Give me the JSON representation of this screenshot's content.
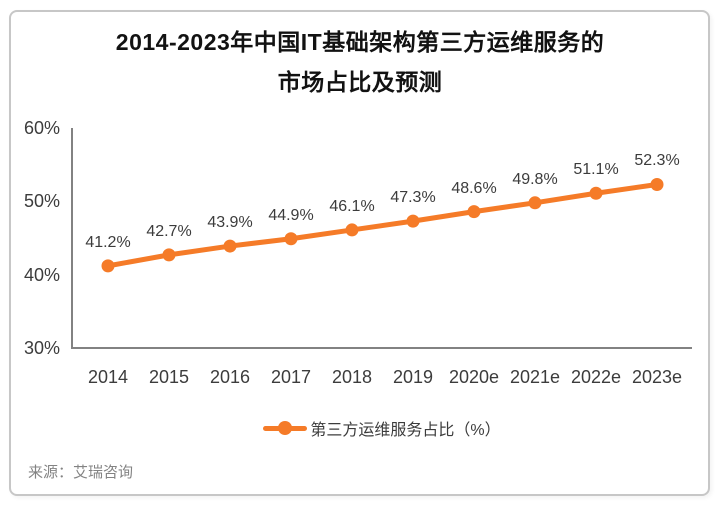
{
  "title": {
    "line1": "2014-2023年中国IT基础架构第三方运维服务的",
    "line2": "市场占比及预测"
  },
  "chart_data": {
    "type": "line",
    "title": "2014-2023年中国IT基础架构第三方运维服务的市场占比及预测",
    "categories": [
      "2014",
      "2015",
      "2016",
      "2017",
      "2018",
      "2019",
      "2020e",
      "2021e",
      "2022e",
      "2023e"
    ],
    "series": [
      {
        "name": "第三方运维服务占比（%）",
        "values": [
          41.2,
          42.7,
          43.9,
          44.9,
          46.1,
          47.3,
          48.6,
          49.8,
          51.1,
          52.3
        ]
      }
    ],
    "point_labels": [
      "41.2%",
      "42.7%",
      "43.9%",
      "44.9%",
      "46.1%",
      "47.3%",
      "48.6%",
      "49.8%",
      "51.1%",
      "52.3%"
    ],
    "y_ticks": [
      {
        "label": "30%",
        "value": 30
      },
      {
        "label": "40%",
        "value": 40
      },
      {
        "label": "50%",
        "value": 50
      },
      {
        "label": "60%",
        "value": 60
      }
    ],
    "ylim": [
      30,
      60
    ],
    "grid": false,
    "legend_position": "bottom",
    "colors": {
      "line": "#f57b28",
      "axis": "#828282",
      "label": "#3c3c3c"
    }
  },
  "source": {
    "text": "来源：艾瑞咨询"
  }
}
